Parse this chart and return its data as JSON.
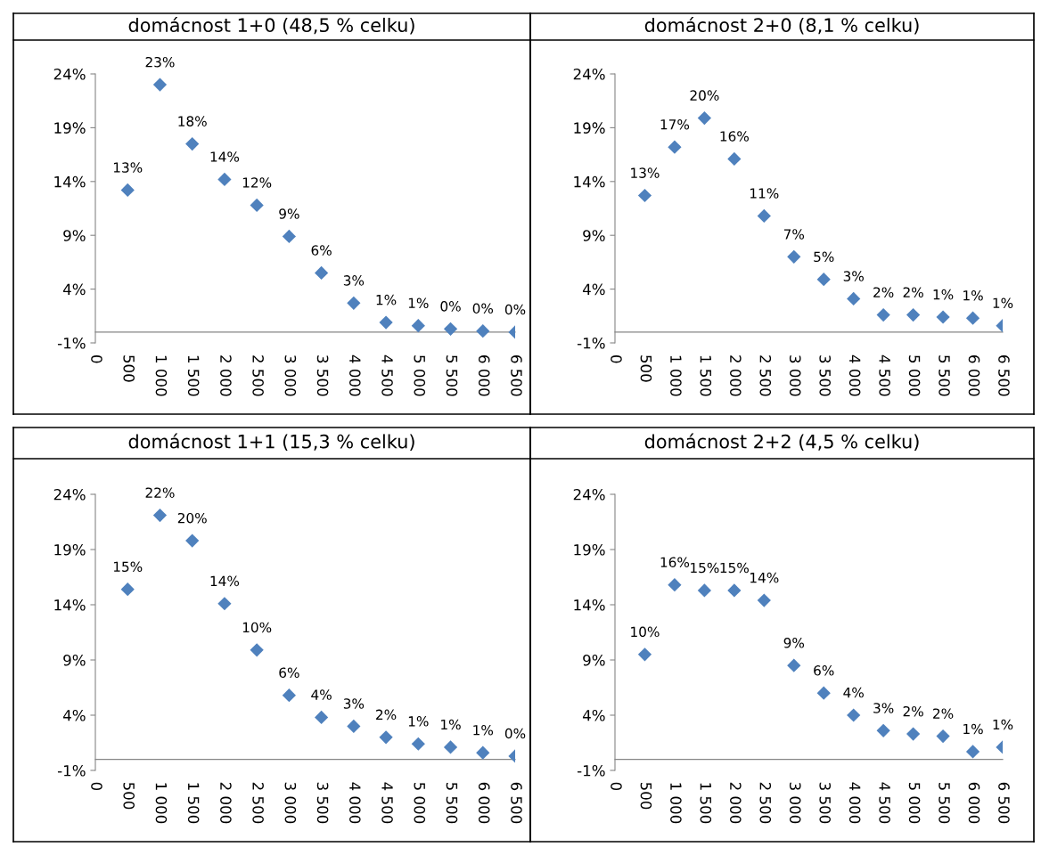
{
  "chart_data": [
    {
      "type": "scatter",
      "title": "domácnost 1+0 (48,5 % celku)",
      "x": [
        500,
        1000,
        1500,
        2000,
        2500,
        3000,
        3500,
        4000,
        4500,
        5000,
        5500,
        6000,
        6500
      ],
      "marker": "diamond",
      "grid": false,
      "legend": false,
      "series": [
        {
          "color": "#4f81bd",
          "values": [
            13.2,
            23.0,
            17.5,
            14.2,
            11.8,
            8.9,
            5.5,
            2.7,
            0.9,
            0.6,
            0.3,
            0.1,
            0.0
          ],
          "value_labels": [
            "13%",
            "23%",
            "18%",
            "14%",
            "12%",
            "9%",
            "6%",
            "3%",
            "1%",
            "1%",
            "0%",
            "0%",
            "0%"
          ]
        }
      ],
      "xlim": [
        0,
        6500
      ],
      "xticks": [
        0,
        500,
        {
          "value": 1000,
          "label": "1 000"
        },
        {
          "value": 1500,
          "label": "1 500"
        },
        {
          "value": 2000,
          "label": "2 000"
        },
        {
          "value": 2500,
          "label": "2 500"
        },
        {
          "value": 3000,
          "label": "3 000"
        },
        {
          "value": 3500,
          "label": "3 500"
        },
        {
          "value": 4000,
          "label": "4 000"
        },
        {
          "value": 4500,
          "label": "4 500"
        },
        {
          "value": 5000,
          "label": "5 000"
        },
        {
          "value": 5500,
          "label": "5 500"
        },
        {
          "value": 6000,
          "label": "6 000"
        },
        {
          "value": 6500,
          "label": "6 500"
        }
      ],
      "ylim": [
        -1,
        24
      ],
      "yticks": [
        {
          "value": -1,
          "label": "-1%"
        },
        {
          "value": 4,
          "label": "4%"
        },
        {
          "value": 9,
          "label": "9%"
        },
        {
          "value": 14,
          "label": "14%"
        },
        {
          "value": 19,
          "label": "19%"
        },
        {
          "value": 24,
          "label": "24%"
        }
      ]
    },
    {
      "type": "scatter",
      "title": "domácnost 2+0 (8,1 % celku)",
      "x": [
        500,
        1000,
        1500,
        2000,
        2500,
        3000,
        3500,
        4000,
        4500,
        5000,
        5500,
        6000,
        6500
      ],
      "marker": "diamond",
      "grid": false,
      "legend": false,
      "series": [
        {
          "color": "#4f81bd",
          "values": [
            12.7,
            17.2,
            19.9,
            16.1,
            10.8,
            7.0,
            4.9,
            3.1,
            1.6,
            1.6,
            1.4,
            1.3,
            0.6
          ],
          "value_labels": [
            "13%",
            "17%",
            "20%",
            "16%",
            "11%",
            "7%",
            "5%",
            "3%",
            "2%",
            "2%",
            "1%",
            "1%",
            "1%"
          ]
        }
      ],
      "xlim": [
        0,
        6500
      ],
      "xticks": [
        0,
        500,
        {
          "value": 1000,
          "label": "1 000"
        },
        {
          "value": 1500,
          "label": "1 500"
        },
        {
          "value": 2000,
          "label": "2 000"
        },
        {
          "value": 2500,
          "label": "2 500"
        },
        {
          "value": 3000,
          "label": "3 000"
        },
        {
          "value": 3500,
          "label": "3 500"
        },
        {
          "value": 4000,
          "label": "4 000"
        },
        {
          "value": 4500,
          "label": "4 500"
        },
        {
          "value": 5000,
          "label": "5 000"
        },
        {
          "value": 5500,
          "label": "5 500"
        },
        {
          "value": 6000,
          "label": "6 000"
        },
        {
          "value": 6500,
          "label": "6 500"
        }
      ],
      "ylim": [
        -1,
        24
      ],
      "yticks": [
        {
          "value": -1,
          "label": "-1%"
        },
        {
          "value": 4,
          "label": "4%"
        },
        {
          "value": 9,
          "label": "9%"
        },
        {
          "value": 14,
          "label": "14%"
        },
        {
          "value": 19,
          "label": "19%"
        },
        {
          "value": 24,
          "label": "24%"
        }
      ]
    },
    {
      "type": "scatter",
      "title": "domácnost 1+1 (15,3 % celku)",
      "x": [
        500,
        1000,
        1500,
        2000,
        2500,
        3000,
        3500,
        4000,
        4500,
        5000,
        5500,
        6000,
        6500
      ],
      "marker": "diamond",
      "grid": false,
      "legend": false,
      "series": [
        {
          "color": "#4f81bd",
          "values": [
            15.4,
            22.1,
            19.8,
            14.1,
            9.9,
            5.8,
            3.8,
            3.0,
            2.0,
            1.4,
            1.1,
            0.6,
            0.3
          ],
          "value_labels": [
            "15%",
            "22%",
            "20%",
            "14%",
            "10%",
            "6%",
            "4%",
            "3%",
            "2%",
            "1%",
            "1%",
            "1%",
            "0%"
          ]
        }
      ],
      "xlim": [
        0,
        6500
      ],
      "xticks": [
        0,
        500,
        {
          "value": 1000,
          "label": "1 000"
        },
        {
          "value": 1500,
          "label": "1 500"
        },
        {
          "value": 2000,
          "label": "2 000"
        },
        {
          "value": 2500,
          "label": "2 500"
        },
        {
          "value": 3000,
          "label": "3 000"
        },
        {
          "value": 3500,
          "label": "3 500"
        },
        {
          "value": 4000,
          "label": "4 000"
        },
        {
          "value": 4500,
          "label": "4 500"
        },
        {
          "value": 5000,
          "label": "5 000"
        },
        {
          "value": 5500,
          "label": "5 500"
        },
        {
          "value": 6000,
          "label": "6 000"
        },
        {
          "value": 6500,
          "label": "6 500"
        }
      ],
      "ylim": [
        -1,
        24
      ],
      "yticks": [
        {
          "value": -1,
          "label": "-1%"
        },
        {
          "value": 4,
          "label": "4%"
        },
        {
          "value": 9,
          "label": "9%"
        },
        {
          "value": 14,
          "label": "14%"
        },
        {
          "value": 19,
          "label": "19%"
        },
        {
          "value": 24,
          "label": "24%"
        }
      ]
    },
    {
      "type": "scatter",
      "title": "domácnost 2+2 (4,5 % celku)",
      "x": [
        500,
        1000,
        1500,
        2000,
        2500,
        3000,
        3500,
        4000,
        4500,
        5000,
        5500,
        6000,
        6500
      ],
      "marker": "diamond",
      "grid": false,
      "legend": false,
      "series": [
        {
          "color": "#4f81bd",
          "values": [
            9.5,
            15.8,
            15.3,
            15.3,
            14.4,
            8.5,
            6.0,
            4.0,
            2.6,
            2.3,
            2.1,
            0.7,
            1.1
          ],
          "value_labels": [
            "10%",
            "16%",
            "15%",
            "15%",
            "14%",
            "9%",
            "6%",
            "4%",
            "3%",
            "2%",
            "2%",
            "1%",
            "1%"
          ]
        }
      ],
      "xlim": [
        0,
        6500
      ],
      "xticks": [
        0,
        500,
        {
          "value": 1000,
          "label": "1 000"
        },
        {
          "value": 1500,
          "label": "1 500"
        },
        {
          "value": 2000,
          "label": "2 000"
        },
        {
          "value": 2500,
          "label": "2 500"
        },
        {
          "value": 3000,
          "label": "3 000"
        },
        {
          "value": 3500,
          "label": "3 500"
        },
        {
          "value": 4000,
          "label": "4 000"
        },
        {
          "value": 4500,
          "label": "4 500"
        },
        {
          "value": 5000,
          "label": "5 000"
        },
        {
          "value": 5500,
          "label": "5 500"
        },
        {
          "value": 6000,
          "label": "6 000"
        },
        {
          "value": 6500,
          "label": "6 500"
        }
      ],
      "ylim": [
        -1,
        24
      ],
      "yticks": [
        {
          "value": -1,
          "label": "-1%"
        },
        {
          "value": 4,
          "label": "4%"
        },
        {
          "value": 9,
          "label": "9%"
        },
        {
          "value": 14,
          "label": "14%"
        },
        {
          "value": 19,
          "label": "19%"
        },
        {
          "value": 24,
          "label": "24%"
        }
      ]
    }
  ]
}
